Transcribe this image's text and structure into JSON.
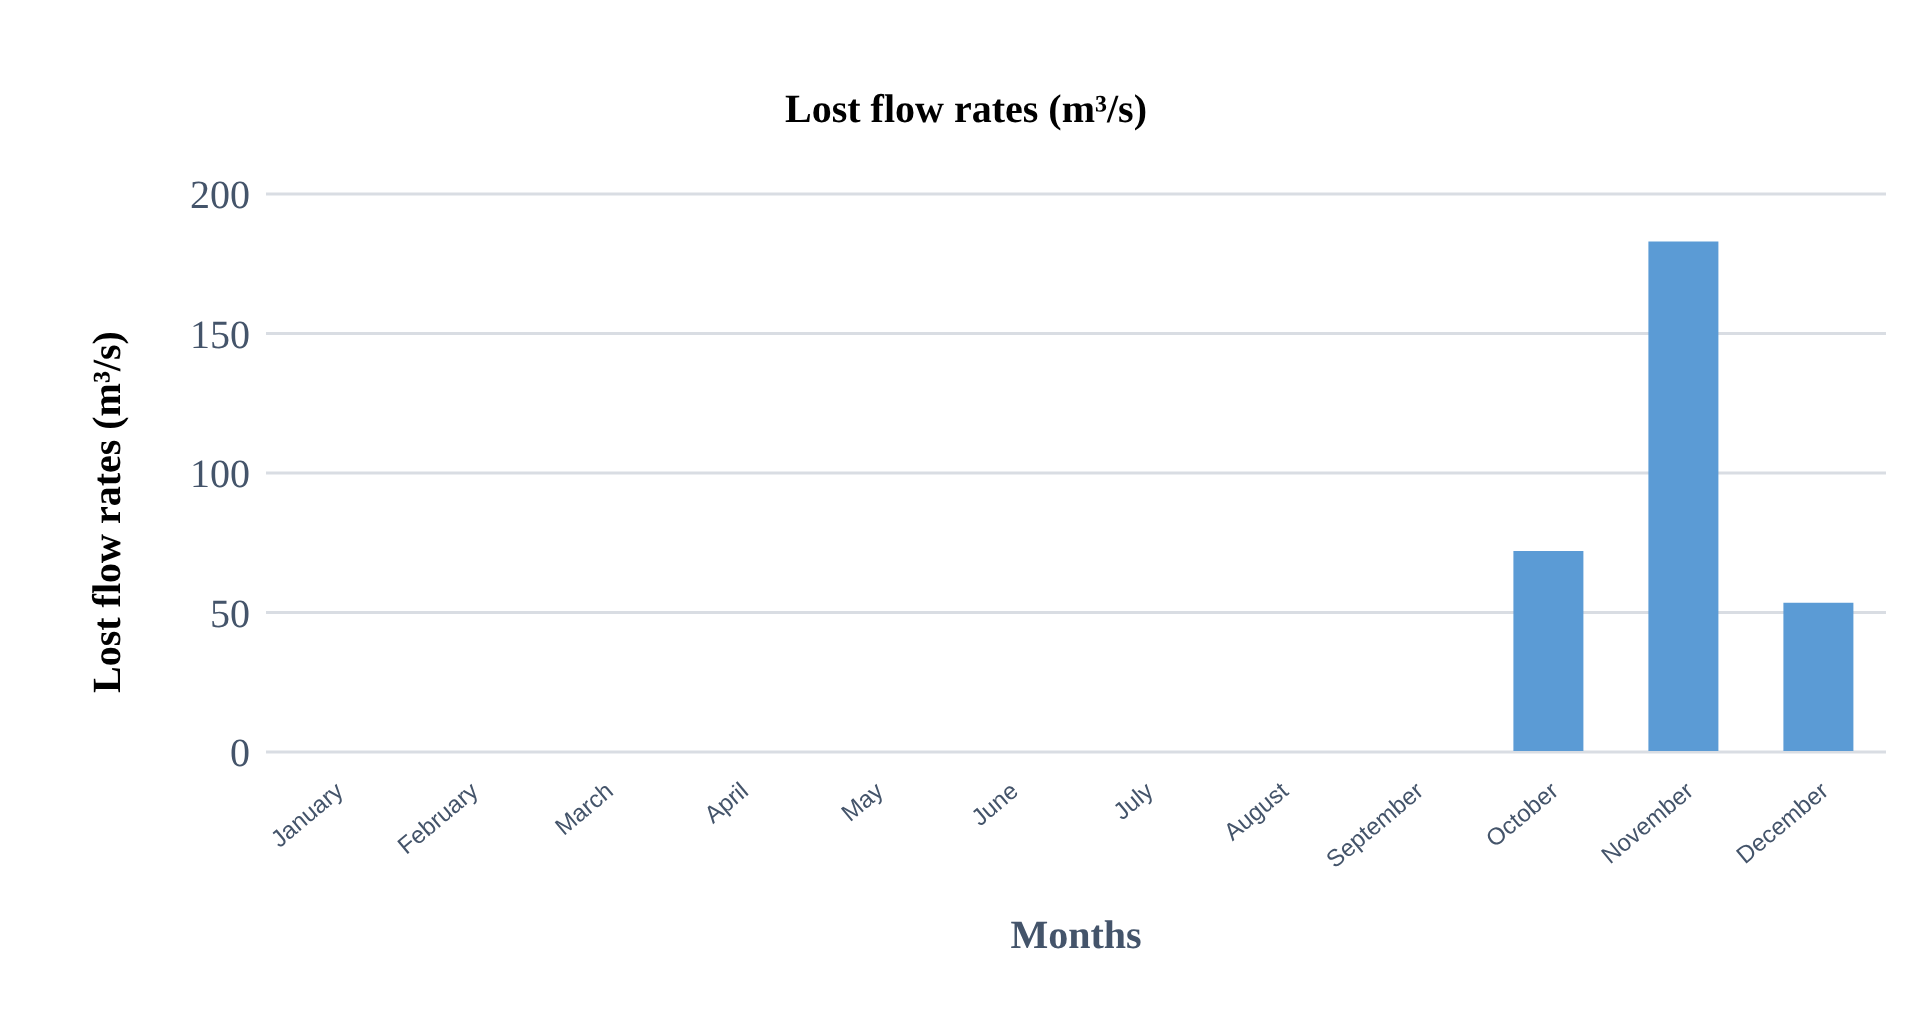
{
  "chart_data": {
    "type": "bar",
    "title": "Lost flow rates (m³/s)",
    "xlabel": "Months",
    "ylabel": "Lost flow rates (m³/s)",
    "categories": [
      "January",
      "February",
      "March",
      "April",
      "May",
      "June",
      "July",
      "August",
      "September",
      "October",
      "November",
      "December"
    ],
    "series": [
      {
        "color": "#5b9bd5",
        "values": [
          0,
          0,
          0,
          0,
          0,
          0,
          0,
          0,
          0,
          72,
          183,
          53.5
        ]
      }
    ],
    "ylim": [
      0,
      200
    ],
    "yticks": [
      0,
      50,
      100,
      150,
      200
    ],
    "grid": "y",
    "legend": false
  }
}
